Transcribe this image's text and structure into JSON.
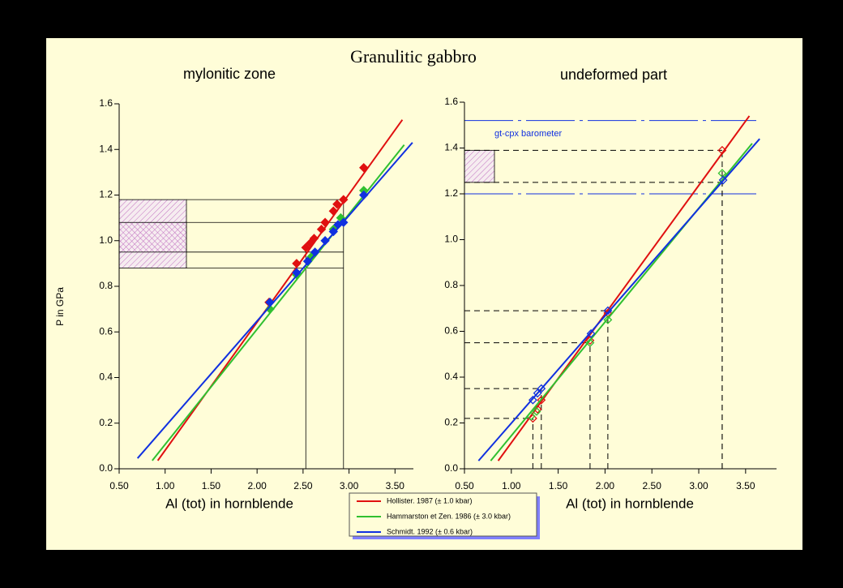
{
  "title": "Granulitic gabbro",
  "chart_data": [
    {
      "type": "line",
      "title": "mylonitic zone",
      "x_label": "Al (tot) in hornblende",
      "y_label": "P in GPa",
      "xlim": [
        0.5,
        3.7
      ],
      "ylim": [
        0,
        1.6
      ],
      "xticks": [
        {
          "value": 0.5,
          "label": "0.50"
        },
        {
          "value": 1,
          "label": "1.00"
        },
        {
          "value": 1.5,
          "label": "1.50"
        },
        {
          "value": 2,
          "label": "2.00"
        },
        {
          "value": 2.5,
          "label": "2.50"
        },
        {
          "value": 3,
          "label": "3.00"
        },
        {
          "value": 3.5,
          "label": "3.50"
        }
      ],
      "yticks": [
        {
          "value": 0,
          "label": "0.0"
        },
        0.2,
        0.4,
        0.6,
        0.8,
        {
          "value": 1,
          "label": "1.0"
        },
        1.2,
        1.4,
        1.6
      ],
      "marker_fill": true,
      "pressure_band": [
        0.88,
        1.18
      ],
      "overlap_band": [
        0.95,
        1.08
      ],
      "guides": [
        [
          2.53,
          0.95
        ],
        [
          2.94,
          1.18
        ]
      ],
      "series": [
        {
          "name": "Hollister. 1987 (± 1.0 kbar)",
          "color": "#e01010",
          "line_x": [
            0.92,
            3.58
          ],
          "line_y": [
            0.036,
            1.53
          ],
          "x": [
            2.13,
            2.43,
            2.53,
            2.58,
            2.62,
            2.7,
            2.74,
            2.83,
            2.87,
            2.94,
            3.16
          ],
          "values": [
            0.73,
            0.9,
            0.97,
            0.99,
            1.01,
            1.05,
            1.08,
            1.13,
            1.16,
            1.18,
            1.32
          ]
        },
        {
          "name": "Hammarston et Zen. 1986 (± 3.0 kbar)",
          "color": "#30c030",
          "line_x": [
            0.86,
            3.6
          ],
          "line_y": [
            0.036,
            1.42
          ],
          "x": [
            2.14,
            2.43,
            2.59,
            2.83,
            2.91,
            3.16
          ],
          "values": [
            0.7,
            0.85,
            0.93,
            1.05,
            1.1,
            1.22
          ]
        },
        {
          "name": "Schmidt. 1992 (± 0.6 kbar)",
          "color": "#1030e0",
          "line_x": [
            0.7,
            3.69
          ],
          "line_y": [
            0.046,
            1.43
          ],
          "x": [
            2.14,
            2.43,
            2.55,
            2.63,
            2.74,
            2.83,
            2.88,
            2.94,
            3.16
          ],
          "values": [
            0.73,
            0.86,
            0.91,
            0.95,
            1.0,
            1.04,
            1.07,
            1.08,
            1.2
          ]
        }
      ]
    },
    {
      "type": "line",
      "title": "undeformed part",
      "x_label": "Al (tot) in hornblende",
      "xlim": [
        0.5,
        3.83
      ],
      "ylim": [
        0,
        1.6
      ],
      "xticks": [
        {
          "value": 0.5,
          "label": "0.50"
        },
        {
          "value": 1,
          "label": "1.00"
        },
        {
          "value": 1.5,
          "label": "1.50"
        },
        {
          "value": 2,
          "label": "2.00"
        },
        {
          "value": 2.5,
          "label": "2.50"
        },
        {
          "value": 3,
          "label": "3.00"
        },
        {
          "value": 3.5,
          "label": "3.50"
        }
      ],
      "yticks": [
        {
          "value": 0,
          "label": "0.0"
        },
        0.2,
        0.4,
        0.6,
        0.8,
        {
          "value": 1,
          "label": "1.0"
        },
        1.2,
        1.4,
        1.6
      ],
      "marker_fill": false,
      "barometer_label": "gt-cpx barometer",
      "barometer_band": [
        1.2,
        1.52
      ],
      "barometer_box": [
        1.25,
        1.39
      ],
      "guides": [
        [
          1.23,
          0.22
        ],
        [
          1.32,
          0.35
        ],
        [
          1.84,
          0.55
        ],
        [
          2.03,
          0.69
        ],
        [
          3.25,
          1.25
        ],
        [
          3.25,
          1.39
        ]
      ],
      "series": [
        {
          "color": "#e01010",
          "line_x": [
            0.86,
            3.54
          ],
          "line_y": [
            0.035,
            1.54
          ],
          "x": [
            1.23,
            1.28,
            1.32,
            1.84,
            2.03,
            3.25
          ],
          "values": [
            0.22,
            0.26,
            0.3,
            0.56,
            0.68,
            1.39
          ]
        },
        {
          "color": "#30c030",
          "line_x": [
            0.78,
            3.57
          ],
          "line_y": [
            0.035,
            1.42
          ],
          "x": [
            1.21,
            1.27,
            1.84,
            2.03,
            3.25
          ],
          "values": [
            0.23,
            0.25,
            0.55,
            0.65,
            1.29
          ]
        },
        {
          "color": "#1030e0",
          "line_x": [
            0.65,
            3.65
          ],
          "line_y": [
            0.035,
            1.44
          ],
          "x": [
            1.23,
            1.28,
            1.32,
            1.85,
            2.03,
            3.26
          ],
          "values": [
            0.3,
            0.33,
            0.35,
            0.59,
            0.69,
            1.26
          ]
        }
      ]
    }
  ]
}
